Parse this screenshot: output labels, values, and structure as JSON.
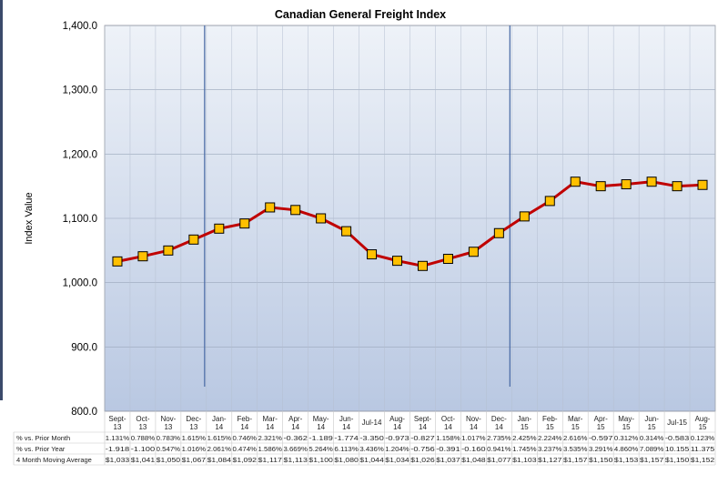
{
  "chart_data": {
    "type": "line",
    "title": "Canadian General Freight Index",
    "ylabel": "Index Value",
    "xlabel": "",
    "ylim": [
      800,
      1400
    ],
    "yticks": [
      "800.0",
      "900.0",
      "1,000.0",
      "1,100.0",
      "1,200.0",
      "1,300.0",
      "1,400.0"
    ],
    "grid": true,
    "colors": {
      "line": "#c00000",
      "marker": "#ffc000",
      "marker_edge": "#000000",
      "divider": "#4f6fa8"
    },
    "categories": [
      "Sept-13",
      "Oct-13",
      "Nov-13",
      "Dec-13",
      "Jan-14",
      "Feb-14",
      "Mar-14",
      "Apr-14",
      "May-14",
      "Jun-14",
      "Jul-14",
      "Aug-14",
      "Sept-14",
      "Oct-14",
      "Nov-14",
      "Dec-14",
      "Jan-15",
      "Feb-15",
      "Mar-15",
      "Apr-15",
      "May-15",
      "Jun-15",
      "Jul-15",
      "Aug-15"
    ],
    "category_labels": [
      [
        "Sept-",
        "13"
      ],
      [
        "Oct-",
        "13"
      ],
      [
        "Nov-",
        "13"
      ],
      [
        "Dec-",
        "13"
      ],
      [
        "Jan-",
        "14"
      ],
      [
        "Feb-",
        "14"
      ],
      [
        "Mar-",
        "14"
      ],
      [
        "Apr-",
        "14"
      ],
      [
        "May-",
        "14"
      ],
      [
        "Jun-",
        "14"
      ],
      [
        "Jul-14",
        ""
      ],
      [
        "Aug-",
        "14"
      ],
      [
        "Sept-",
        "14"
      ],
      [
        "Oct-",
        "14"
      ],
      [
        "Nov-",
        "14"
      ],
      [
        "Dec-",
        "14"
      ],
      [
        "Jan-",
        "15"
      ],
      [
        "Feb-",
        "15"
      ],
      [
        "Mar-",
        "15"
      ],
      [
        "Apr-",
        "15"
      ],
      [
        "May-",
        "15"
      ],
      [
        "Jun-",
        "15"
      ],
      [
        "Jul-15",
        ""
      ],
      [
        "Aug-",
        "15"
      ]
    ],
    "values": [
      1033,
      1041,
      1050,
      1067,
      1084,
      1092,
      1117,
      1113,
      1100,
      1080,
      1044,
      1034,
      1026,
      1037,
      1048,
      1077,
      1103,
      1127,
      1157,
      1150,
      1153,
      1157,
      1150,
      1152
    ],
    "dividers_before": [
      "Jan-14",
      "Jan-15"
    ],
    "table": [
      {
        "label": "% vs. Prior Month",
        "cells": [
          "1.131%",
          "0.788%",
          "0.783%",
          "1.615%",
          "1.615%",
          "0.746%",
          "2.321%",
          "-0.362",
          "-1.189",
          "-1.774",
          "-3.350",
          "-0.973",
          "-0.827",
          "1.158%",
          "1.017%",
          "2.735%",
          "2.425%",
          "2.224%",
          "2.616%",
          "-0.597",
          "0.312%",
          "0.314%",
          "-0.583",
          "0.123%"
        ]
      },
      {
        "label": "% vs. Prior Year",
        "cells": [
          "-1.918",
          "-1.100",
          "0.547%",
          "1.016%",
          "2.061%",
          "0.474%",
          "1.586%",
          "3.669%",
          "5.264%",
          "6.113%",
          "3.436%",
          "1.204%",
          "-0.756",
          "-0.391",
          "-0.160",
          "0.941%",
          "1.745%",
          "3.237%",
          "3.535%",
          "3.291%",
          "4.860%",
          "7.089%",
          "10.155",
          "11.375"
        ]
      },
      {
        "label": "4 Month Moving Average",
        "cells": [
          "$1,033",
          "$1,041",
          "$1,050",
          "$1,067",
          "$1,084",
          "$1,092",
          "$1,117",
          "$1,113",
          "$1,100",
          "$1,080",
          "$1,044",
          "$1,034",
          "$1,026",
          "$1,037",
          "$1,048",
          "$1,077",
          "$1,103",
          "$1,127",
          "$1,157",
          "$1,150",
          "$1,153",
          "$1,157",
          "$1,150",
          "$1,152"
        ]
      }
    ]
  }
}
